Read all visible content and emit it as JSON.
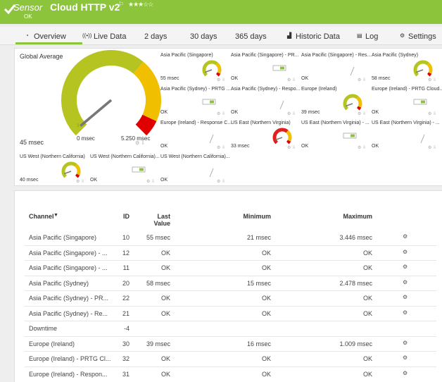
{
  "header": {
    "prefix": "Sensor",
    "title": "Cloud HTTP v2",
    "status": "OK"
  },
  "tabs": [
    "Overview",
    "Live Data",
    "2  days",
    "30  days",
    "365  days",
    "Historic Data",
    "Log",
    "Settings"
  ],
  "gauges": {
    "global": {
      "title": "Global Average",
      "value": "45 msec",
      "min": "0 msec",
      "max": "5.250 msec",
      "marker": "3"
    },
    "tiles": [
      {
        "label": "Asia Pacific (Singapore)",
        "value": "55 msec",
        "kind": "gauge"
      },
      {
        "label": "Asia Pacific (Singapore) - PR...",
        "value": "OK",
        "kind": "toggle"
      },
      {
        "label": "Asia Pacific (Singapore) - Res...",
        "value": "OK",
        "kind": "line"
      },
      {
        "label": "Asia Pacific (Sydney)",
        "value": "58 msec",
        "kind": "gauge"
      },
      {
        "label": "Asia Pacific (Sydney) - PRTG ...",
        "value": "OK",
        "kind": "toggle"
      },
      {
        "label": "Asia Pacific (Sydney) - Respo...",
        "value": "OK",
        "kind": "line"
      },
      {
        "label": "Europe (Ireland)",
        "value": "39 msec",
        "kind": "gauge"
      },
      {
        "label": "Europe (Ireland) - PRTG Cloud...",
        "value": "OK",
        "kind": "toggle"
      },
      {
        "label": "Europe (Ireland) - Response C...",
        "value": "OK",
        "kind": "line"
      },
      {
        "label": "US East (Northern Virginia)",
        "value": "33 msec",
        "kind": "gauge-alert"
      },
      {
        "label": "US East (Northern Virginia) - ...",
        "value": "OK",
        "kind": "toggle"
      },
      {
        "label": "US East (Northern Virginia) - ...",
        "value": "OK",
        "kind": "line"
      },
      {
        "label": "US West (Northern California)",
        "value": "40 msec",
        "kind": "gauge"
      },
      {
        "label": "US West (Northern California)...",
        "value": "OK",
        "kind": "toggle"
      },
      {
        "label": "US West (Northern California)...",
        "value": "OK",
        "kind": "line"
      }
    ]
  },
  "table": {
    "columns": [
      "Channel",
      "ID",
      "Last Value",
      "Minimum",
      "Maximum"
    ],
    "rows": [
      [
        "Asia Pacific (Singapore)",
        "10",
        "55 msec",
        "21 msec",
        "3.446 msec"
      ],
      [
        "Asia Pacific (Singapore) - ...",
        "12",
        "OK",
        "OK",
        "OK"
      ],
      [
        "Asia Pacific (Singapore) - ...",
        "11",
        "OK",
        "OK",
        "OK"
      ],
      [
        "Asia Pacific (Sydney)",
        "20",
        "58 msec",
        "15 msec",
        "2.478 msec"
      ],
      [
        "Asia Pacific (Sydney) - PR...",
        "22",
        "OK",
        "OK",
        "OK"
      ],
      [
        "Asia Pacific (Sydney) - Re...",
        "21",
        "OK",
        "OK",
        "OK"
      ],
      [
        "Downtime",
        "-4"
      ],
      [
        "Europe (Ireland)",
        "30",
        "39 msec",
        "16 msec",
        "1.009 msec"
      ],
      [
        "Europe (Ireland) - PRTG Cl...",
        "32",
        "OK",
        "OK",
        "OK"
      ],
      [
        "Europe (Ireland) - Respon...",
        "31",
        "OK",
        "OK",
        "OK"
      ]
    ]
  }
}
